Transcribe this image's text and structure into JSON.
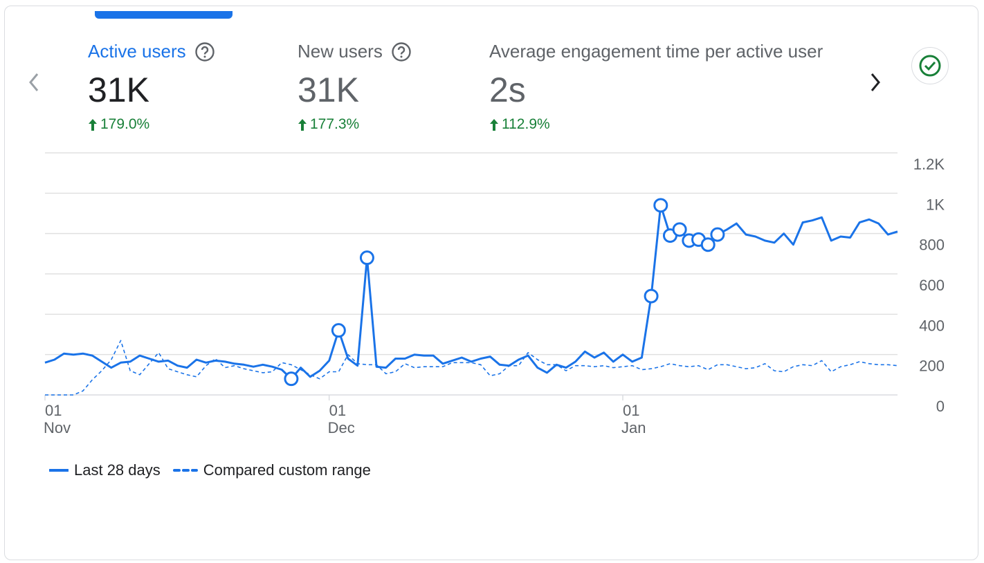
{
  "metrics": [
    {
      "title": "Active users",
      "value": "31K",
      "delta": "179.0%",
      "active": true
    },
    {
      "title": "New users",
      "value": "31K",
      "delta": "177.3%",
      "active": false
    },
    {
      "title": "Average engagement time per active user",
      "value": "2s",
      "delta": "112.9%",
      "active": false
    }
  ],
  "colors": {
    "accent": "#1a73e8",
    "positive": "#188038",
    "grid": "#e0e0e0",
    "text_secondary": "#5f6368"
  },
  "icons": {
    "prev": "chevron-left-icon",
    "next": "chevron-right-icon",
    "help": "help-circle-icon",
    "status": "check-circle-icon",
    "delta": "arrow-up-icon"
  },
  "legend": {
    "primary": "Last 28 days",
    "comparison": "Compared custom range"
  },
  "chart_data": {
    "type": "line",
    "x_ticks": [
      {
        "day": "01",
        "month": "Nov",
        "index": 0
      },
      {
        "day": "01",
        "month": "Dec",
        "index": 30
      },
      {
        "day": "01",
        "month": "Jan",
        "index": 61
      }
    ],
    "y_ticks": [
      "0",
      "200",
      "400",
      "600",
      "800",
      "1K",
      "1.2K"
    ],
    "ylim": [
      0,
      1200
    ],
    "y_axis_position": "right",
    "grid": true,
    "legend_position": "bottom-left",
    "series": [
      {
        "name": "Last 28 days",
        "style": "solid",
        "values": [
          160,
          175,
          205,
          200,
          205,
          195,
          165,
          135,
          160,
          165,
          195,
          180,
          165,
          170,
          145,
          135,
          175,
          160,
          170,
          165,
          155,
          150,
          140,
          150,
          140,
          125,
          80,
          135,
          90,
          120,
          170,
          320,
          180,
          145,
          680,
          140,
          135,
          180,
          180,
          200,
          195,
          195,
          155,
          170,
          185,
          165,
          180,
          190,
          150,
          145,
          175,
          195,
          135,
          110,
          150,
          135,
          165,
          215,
          185,
          210,
          165,
          200,
          165,
          185,
          490,
          940,
          790,
          820,
          765,
          770,
          745,
          795,
          820,
          850,
          795,
          785,
          765,
          755,
          800,
          745,
          855,
          865,
          880,
          765,
          785,
          780,
          855,
          870,
          850,
          795,
          810
        ]
      },
      {
        "name": "Compared custom range",
        "style": "dashed",
        "values": [
          0,
          0,
          0,
          0,
          20,
          75,
          120,
          175,
          270,
          120,
          100,
          155,
          210,
          130,
          115,
          100,
          90,
          145,
          180,
          135,
          145,
          130,
          120,
          110,
          115,
          160,
          150,
          125,
          100,
          80,
          115,
          115,
          200,
          155,
          150,
          150,
          105,
          115,
          155,
          135,
          140,
          140,
          140,
          160,
          160,
          160,
          150,
          95,
          105,
          145,
          145,
          210,
          175,
          150,
          150,
          120,
          145,
          145,
          140,
          145,
          135,
          140,
          145,
          125,
          130,
          140,
          155,
          145,
          140,
          145,
          125,
          150,
          150,
          140,
          130,
          135,
          155,
          120,
          115,
          140,
          150,
          145,
          170,
          115,
          140,
          150,
          165,
          155,
          150,
          150,
          145
        ]
      }
    ],
    "highlighted_indices": [
      26,
      31,
      34,
      64,
      65,
      66,
      67,
      68,
      69,
      70,
      71
    ]
  }
}
